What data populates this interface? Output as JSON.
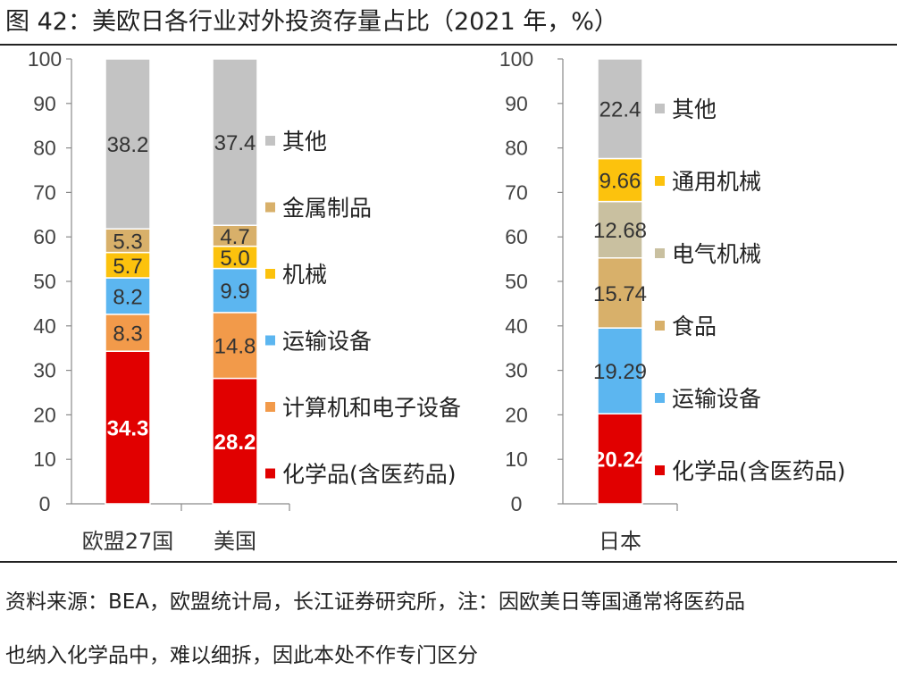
{
  "figure": {
    "title": "图 42：美欧日各行业对外投资存量占比（2021 年，%）",
    "source_line1": "资料来源：BEA，欧盟统计局，长江证券研究所，注：因欧美日等国通常将医药品",
    "source_line2": "也纳入化学品中，难以细拆，因此本处不作专门区分"
  },
  "chart_data": [
    {
      "type": "bar",
      "stacked": true,
      "categories": [
        "欧盟27国",
        "美国"
      ],
      "ylim": [
        0,
        100
      ],
      "yticks": [
        0,
        10,
        20,
        30,
        40,
        50,
        60,
        70,
        80,
        90,
        100
      ],
      "legend_position": "right",
      "series": [
        {
          "name": "化学品(含医药品)",
          "color": "#e10000",
          "values": [
            34.3,
            28.2
          ],
          "labels": [
            "34.3",
            "28.2"
          ],
          "label_color": "#ffffff"
        },
        {
          "name": "计算机和电子设备",
          "color": "#f29a4a",
          "values": [
            8.3,
            14.8
          ],
          "labels": [
            "8.3",
            "14.8"
          ],
          "label_color": "#333333"
        },
        {
          "name": "运输设备",
          "color": "#5cb6f0",
          "values": [
            8.2,
            9.9
          ],
          "labels": [
            "8.2",
            "9.9"
          ],
          "label_color": "#333333"
        },
        {
          "name": "机械",
          "color": "#fcc20d",
          "values": [
            5.7,
            5.0
          ],
          "labels": [
            "5.7",
            "5.0"
          ],
          "label_color": "#333333"
        },
        {
          "name": "金属制品",
          "color": "#d8b06a",
          "values": [
            5.3,
            4.7
          ],
          "labels": [
            "5.3",
            "4.7"
          ],
          "label_color": "#333333"
        },
        {
          "name": "其他",
          "color": "#c3c3c3",
          "values": [
            38.2,
            37.4
          ],
          "labels": [
            "38.2",
            "37.4"
          ],
          "label_color": "#333333"
        }
      ]
    },
    {
      "type": "bar",
      "stacked": true,
      "categories": [
        "日本"
      ],
      "ylim": [
        0,
        100
      ],
      "yticks": [
        0,
        10,
        20,
        30,
        40,
        50,
        60,
        70,
        80,
        90,
        100
      ],
      "legend_position": "right",
      "series": [
        {
          "name": "化学品(含医药品)",
          "color": "#e10000",
          "values": [
            20.24
          ],
          "labels": [
            "20.24"
          ],
          "label_color": "#ffffff"
        },
        {
          "name": "运输设备",
          "color": "#5cb6f0",
          "values": [
            19.29
          ],
          "labels": [
            "19.29"
          ],
          "label_color": "#333333"
        },
        {
          "name": "食品",
          "color": "#d8b06a",
          "values": [
            15.74
          ],
          "labels": [
            "15.74"
          ],
          "label_color": "#333333"
        },
        {
          "name": "电气机械",
          "color": "#c9c0a0",
          "values": [
            12.68
          ],
          "labels": [
            "12.68"
          ],
          "label_color": "#333333"
        },
        {
          "name": "通用机械",
          "color": "#fcc20d",
          "values": [
            9.66
          ],
          "labels": [
            "9.66"
          ],
          "label_color": "#333333"
        },
        {
          "name": "其他",
          "color": "#c3c3c3",
          "values": [
            22.4
          ],
          "labels": [
            "22.4"
          ],
          "label_color": "#333333"
        }
      ]
    }
  ]
}
